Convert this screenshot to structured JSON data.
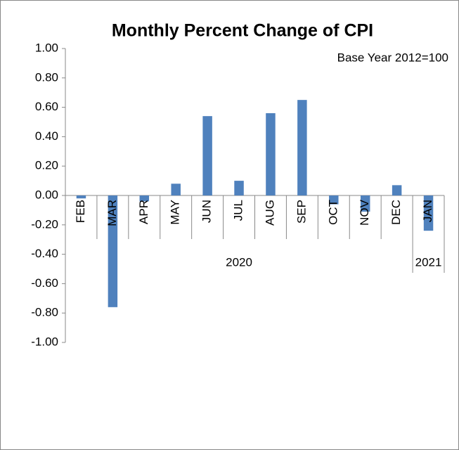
{
  "chart_data": {
    "type": "bar",
    "title": "Monthly Percent Change of CPI",
    "subtitle": "Base Year 2012=100",
    "categories": [
      "FEB",
      "MAR",
      "APR",
      "MAY",
      "JUN",
      "JUL",
      "AUG",
      "SEP",
      "OCT",
      "NOV",
      "DEC",
      "JAN"
    ],
    "groups": [
      {
        "name": "2020",
        "count": 11
      },
      {
        "name": "2021",
        "count": 1
      }
    ],
    "values": [
      -0.02,
      -0.76,
      -0.04,
      0.08,
      0.54,
      0.1,
      0.56,
      0.65,
      -0.06,
      -0.11,
      0.07,
      -0.24
    ],
    "color": "#4f81bd",
    "ylim": [
      -1,
      1
    ],
    "yticks": [
      {
        "value": -1,
        "label": "-1.00"
      },
      {
        "value": -0.8,
        "label": "-0.80"
      },
      {
        "value": -0.6,
        "label": "-0.60"
      },
      {
        "value": -0.4,
        "label": "-0.40"
      },
      {
        "value": -0.2,
        "label": "-0.20"
      },
      {
        "value": 0,
        "label": "0.00"
      },
      {
        "value": 0.2,
        "label": "0.20"
      },
      {
        "value": 0.4,
        "label": "0.40"
      },
      {
        "value": 0.6,
        "label": "0.60"
      },
      {
        "value": 0.8,
        "label": "0.80"
      },
      {
        "value": 1,
        "label": "1.00"
      }
    ],
    "grid": false
  }
}
